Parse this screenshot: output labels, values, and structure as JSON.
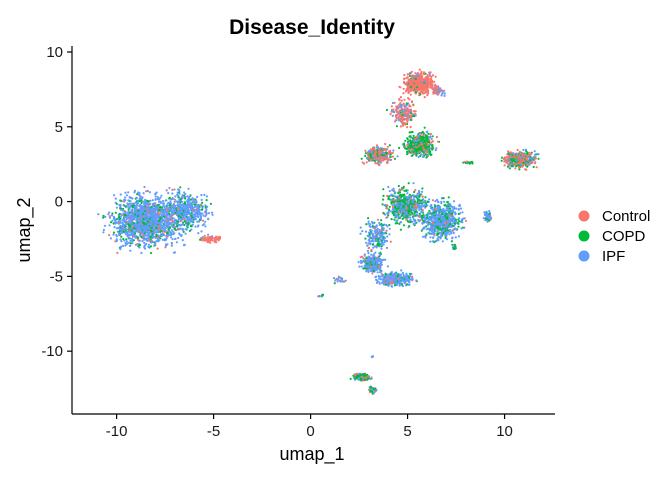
{
  "chart_data": {
    "type": "scatter",
    "title": "Disease_Identity",
    "xlabel": "umap_1",
    "ylabel": "umap_2",
    "xlim": [
      -12.3,
      12.6
    ],
    "ylim": [
      -14.2,
      10.4
    ],
    "x_ticks": [
      -10,
      -5,
      0,
      5,
      10
    ],
    "y_ticks": [
      -10,
      -5,
      0,
      5,
      10
    ],
    "x_tick_labels": [
      "-10",
      "-5",
      "0",
      "5",
      "10"
    ],
    "y_tick_labels": [
      "-10",
      "-5",
      "0",
      "5",
      "10"
    ],
    "grid": false,
    "legend_position": "right",
    "series": [
      {
        "name": "Control",
        "color": "#F8766D"
      },
      {
        "name": "COPD",
        "color": "#00BA38"
      },
      {
        "name": "IPF",
        "color": "#619CFF"
      }
    ],
    "clusters": [
      {
        "cx": -8.5,
        "cy": -1.3,
        "rx": 2.6,
        "ry": 2.6,
        "n": 1500,
        "mix": [
          0.08,
          0.15,
          0.77
        ]
      },
      {
        "cx": -6.4,
        "cy": -0.6,
        "rx": 1.6,
        "ry": 1.8,
        "n": 500,
        "mix": [
          0.05,
          0.18,
          0.77
        ]
      },
      {
        "cx": -5.2,
        "cy": -2.5,
        "rx": 0.9,
        "ry": 0.35,
        "n": 70,
        "mix": [
          0.85,
          0.05,
          0.1
        ]
      },
      {
        "cx": 5.6,
        "cy": 7.9,
        "rx": 1.3,
        "ry": 1.0,
        "n": 500,
        "mix": [
          0.9,
          0.03,
          0.07
        ]
      },
      {
        "cx": 6.6,
        "cy": 7.4,
        "rx": 0.5,
        "ry": 0.5,
        "n": 70,
        "mix": [
          0.4,
          0.0,
          0.6
        ]
      },
      {
        "cx": 4.8,
        "cy": 6.0,
        "rx": 0.9,
        "ry": 1.3,
        "n": 200,
        "mix": [
          0.7,
          0.1,
          0.2
        ]
      },
      {
        "cx": 5.6,
        "cy": 3.8,
        "rx": 1.1,
        "ry": 1.2,
        "n": 500,
        "mix": [
          0.2,
          0.6,
          0.2
        ]
      },
      {
        "cx": 3.5,
        "cy": 3.1,
        "rx": 1.1,
        "ry": 0.8,
        "n": 350,
        "mix": [
          0.55,
          0.25,
          0.2
        ]
      },
      {
        "cx": 10.8,
        "cy": 2.8,
        "rx": 1.2,
        "ry": 0.8,
        "n": 400,
        "mix": [
          0.45,
          0.3,
          0.25
        ]
      },
      {
        "cx": 4.9,
        "cy": -0.3,
        "rx": 1.5,
        "ry": 1.8,
        "n": 600,
        "mix": [
          0.1,
          0.45,
          0.45
        ]
      },
      {
        "cx": 6.7,
        "cy": -1.3,
        "rx": 1.6,
        "ry": 1.9,
        "n": 650,
        "mix": [
          0.05,
          0.25,
          0.7
        ]
      },
      {
        "cx": 9.1,
        "cy": -1.0,
        "rx": 0.3,
        "ry": 0.6,
        "n": 60,
        "mix": [
          0.05,
          0.1,
          0.85
        ]
      },
      {
        "cx": 3.2,
        "cy": -4.1,
        "rx": 0.9,
        "ry": 0.9,
        "n": 300,
        "mix": [
          0.1,
          0.2,
          0.7
        ]
      },
      {
        "cx": 4.4,
        "cy": -5.2,
        "rx": 1.3,
        "ry": 0.7,
        "n": 300,
        "mix": [
          0.05,
          0.1,
          0.85
        ]
      },
      {
        "cx": 3.4,
        "cy": -2.3,
        "rx": 0.9,
        "ry": 1.4,
        "n": 200,
        "mix": [
          0.05,
          0.25,
          0.7
        ]
      },
      {
        "cx": 2.6,
        "cy": -11.7,
        "rx": 0.7,
        "ry": 0.35,
        "n": 120,
        "mix": [
          0.2,
          0.5,
          0.3
        ]
      },
      {
        "cx": 3.2,
        "cy": -12.6,
        "rx": 0.3,
        "ry": 0.35,
        "n": 45,
        "mix": [
          0.1,
          0.3,
          0.6
        ]
      },
      {
        "cx": 1.5,
        "cy": -5.3,
        "rx": 0.5,
        "ry": 0.3,
        "n": 20,
        "mix": [
          0.1,
          0.3,
          0.6
        ]
      },
      {
        "cx": 0.5,
        "cy": -6.3,
        "rx": 0.25,
        "ry": 0.12,
        "n": 8,
        "mix": [
          0.2,
          0.3,
          0.5
        ]
      },
      {
        "cx": 8.1,
        "cy": 2.6,
        "rx": 0.5,
        "ry": 0.15,
        "n": 20,
        "mix": [
          0.1,
          0.7,
          0.2
        ]
      },
      {
        "cx": 7.4,
        "cy": -3.0,
        "rx": 0.2,
        "ry": 0.3,
        "n": 15,
        "mix": [
          0.1,
          0.6,
          0.3
        ]
      },
      {
        "cx": 3.2,
        "cy": -10.4,
        "rx": 0.05,
        "ry": 0.2,
        "n": 4,
        "mix": [
          0.0,
          0.0,
          1.0
        ]
      }
    ]
  }
}
